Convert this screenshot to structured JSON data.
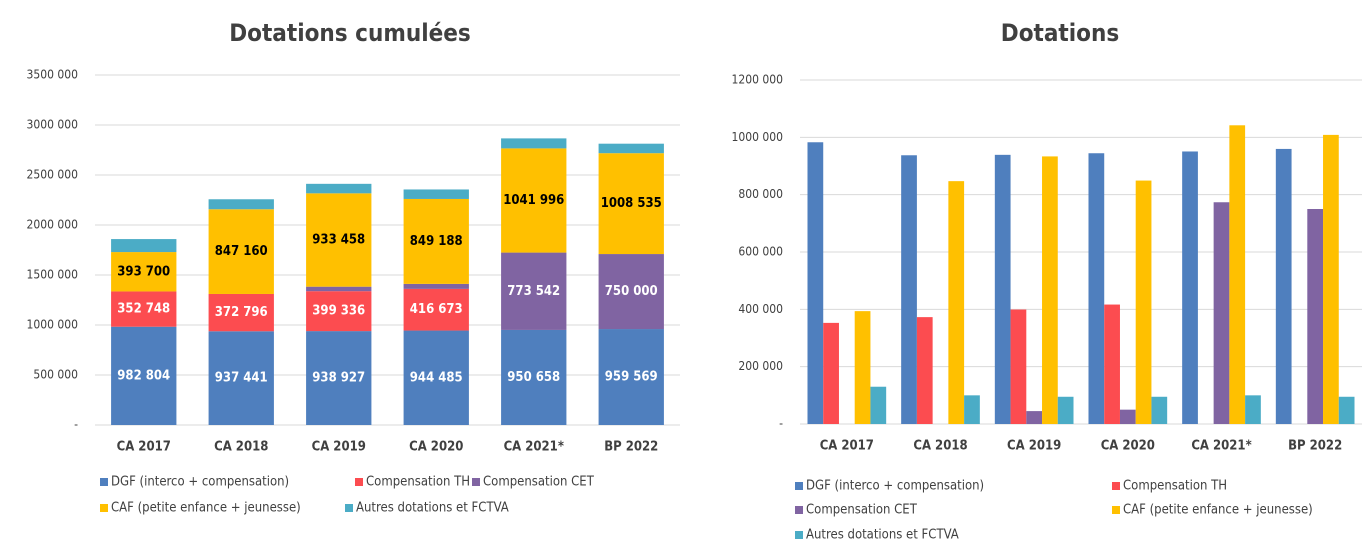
{
  "chart_data": [
    {
      "type": "stacked_bar",
      "title": "Dotations cumulées",
      "categories": [
        "CA 2017",
        "CA 2018",
        "CA 2019",
        "CA 2020",
        "CA 2021*",
        "BP 2022"
      ],
      "series": [
        {
          "name": "DGF (interco + compensation)",
          "color": "#4f7fbe",
          "label_color": "#ffffff",
          "values": [
            982804,
            937441,
            938927,
            944485,
            950658,
            959569
          ],
          "value_labels": [
            "982 804",
            "937 441",
            "938 927",
            "944 485",
            "950 658",
            "959 569"
          ]
        },
        {
          "name": "Compensation TH",
          "color": "#fc4c50",
          "label_color": "#ffffff",
          "values": [
            352748,
            372796,
            399336,
            416673,
            null,
            null
          ],
          "value_labels": [
            "352 748",
            "372 796",
            "399 336",
            "416 673",
            null,
            null
          ]
        },
        {
          "name": "Compensation CET",
          "color": "#8064a2",
          "label_color": "#ffffff",
          "values": [
            null,
            null,
            45000,
            50000,
            773542,
            750000
          ],
          "value_labels": [
            null,
            null,
            null,
            null,
            "773 542",
            "750 000"
          ]
        },
        {
          "name": "CAF (petite enfance + jeunesse)",
          "color": "#ffc000",
          "label_color": "#000000",
          "values": [
            393700,
            847160,
            933458,
            849188,
            1041996,
            1008535
          ],
          "value_labels": [
            "393 700",
            "847 160",
            "933 458",
            "849 188",
            "1041 996",
            "1008 535"
          ]
        },
        {
          "name": "Autres dotations et FCTVA",
          "color": "#4bacc6",
          "label_color": "#000000",
          "values": [
            130000,
            100000,
            95000,
            95000,
            100000,
            95000
          ]
        }
      ],
      "ylim": [
        0,
        3500000
      ],
      "yticks": [
        {
          "value": 0,
          "label": "-"
        },
        {
          "value": 500000,
          "label": "500 000"
        },
        {
          "value": 1000000,
          "label": "1000 000"
        },
        {
          "value": 1500000,
          "label": "1500 000"
        },
        {
          "value": 2000000,
          "label": "2000 000"
        },
        {
          "value": 2500000,
          "label": "2500 000"
        },
        {
          "value": 3000000,
          "label": "3000 000"
        },
        {
          "value": 3500000,
          "label": "3500 000"
        }
      ],
      "grid": true,
      "legend": "bottom"
    },
    {
      "type": "bar",
      "title": "Dotations",
      "categories": [
        "CA 2017",
        "CA 2018",
        "CA 2019",
        "CA 2020",
        "CA 2021*",
        "BP 2022"
      ],
      "series": [
        {
          "name": "DGF (interco + compensation)",
          "color": "#4f7fbe",
          "values": [
            982804,
            937441,
            938927,
            944485,
            950658,
            959569
          ]
        },
        {
          "name": "Compensation TH",
          "color": "#fc4c50",
          "values": [
            352748,
            372796,
            399336,
            416673,
            null,
            null
          ]
        },
        {
          "name": "Compensation CET",
          "color": "#8064a2",
          "values": [
            null,
            null,
            45000,
            50000,
            773542,
            750000
          ]
        },
        {
          "name": "CAF (petite enfance + jeunesse)",
          "color": "#ffc000",
          "values": [
            393700,
            847160,
            933458,
            849188,
            1041996,
            1008535
          ]
        },
        {
          "name": "Autres dotations et FCTVA",
          "color": "#4bacc6",
          "values": [
            130000,
            100000,
            95000,
            95000,
            100000,
            95000
          ]
        }
      ],
      "ylim": [
        0,
        1200000
      ],
      "yticks": [
        {
          "value": 0,
          "label": "-"
        },
        {
          "value": 200000,
          "label": "200 000"
        },
        {
          "value": 400000,
          "label": "400 000"
        },
        {
          "value": 600000,
          "label": "600 000"
        },
        {
          "value": 800000,
          "label": "800 000"
        },
        {
          "value": 1000000,
          "label": "1000 000"
        },
        {
          "value": 1200000,
          "label": "1200 000"
        }
      ],
      "grid": true,
      "legend": "bottom"
    }
  ]
}
